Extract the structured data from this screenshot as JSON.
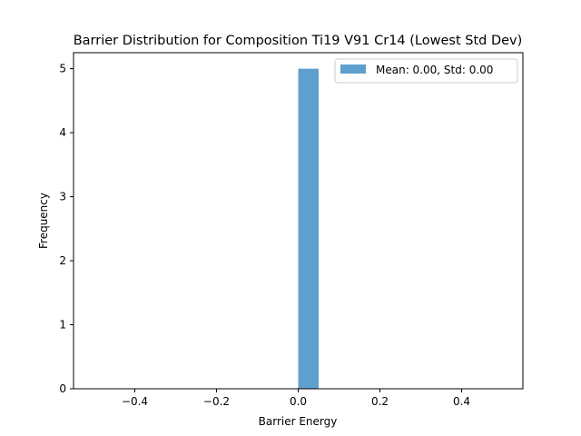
{
  "chart_data": {
    "type": "bar",
    "title": "Barrier Distribution for Composition Ti19 V91 Cr14 (Lowest Std Dev)",
    "xlabel": "Barrier Energy",
    "ylabel": "Frequency",
    "xlim": [
      -0.55,
      0.55
    ],
    "ylim": [
      0,
      5.25
    ],
    "xticks": [
      -0.4,
      -0.2,
      0.0,
      0.2,
      0.4
    ],
    "xtick_labels": [
      "−0.4",
      "−0.2",
      "0.0",
      "0.2",
      "0.4"
    ],
    "yticks": [
      0,
      1,
      2,
      3,
      4,
      5
    ],
    "ytick_labels": [
      "0",
      "1",
      "2",
      "3",
      "4",
      "5"
    ],
    "bars": [
      {
        "x_start": 0.0,
        "x_end": 0.05,
        "value": 5
      }
    ],
    "series": [
      {
        "name": "Mean: 0.00, Std: 0.00",
        "color": "#5f9fcd"
      }
    ],
    "legend_position": "top-right",
    "grid": false
  }
}
